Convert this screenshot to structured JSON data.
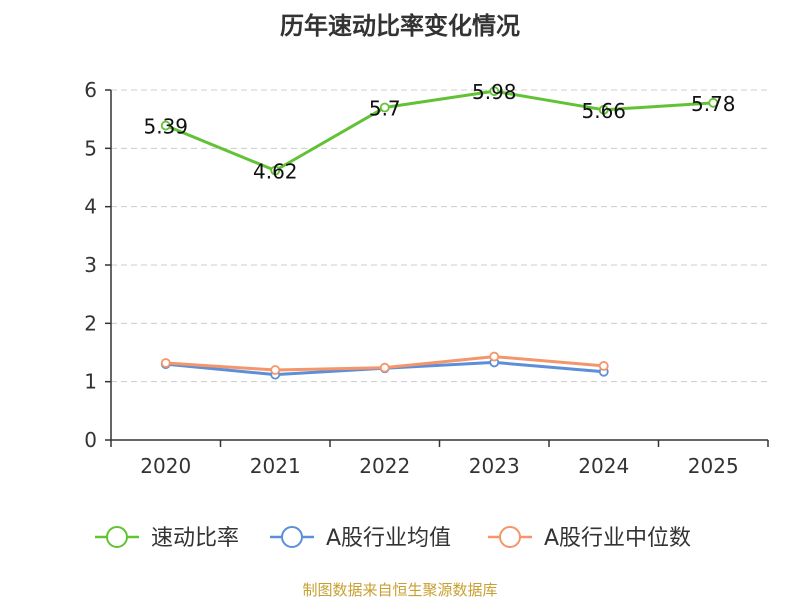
{
  "chart_data": {
    "type": "line",
    "title": "历年速动比率变化情况",
    "categories": [
      "2020",
      "2021",
      "2022",
      "2023",
      "2024",
      "2025"
    ],
    "ylim": [
      0,
      6
    ],
    "yticks": [
      "0",
      "1",
      "2",
      "3",
      "4",
      "5",
      "6"
    ],
    "grid": true,
    "legend_position": "bottom",
    "series": [
      {
        "name": "速动比率",
        "color": "#62c236",
        "values": [
          5.39,
          4.62,
          5.7,
          5.98,
          5.66,
          5.78
        ],
        "labels": [
          "5.39",
          "4.62",
          "5.7",
          "5.98",
          "5.66",
          "5.78"
        ]
      },
      {
        "name": "A股行业均值",
        "color": "#5b8fd9",
        "values": [
          1.3,
          1.12,
          1.23,
          1.33,
          1.17,
          null
        ]
      },
      {
        "name": "A股行业中位数",
        "color": "#f5956a",
        "values": [
          1.32,
          1.2,
          1.24,
          1.43,
          1.27,
          null
        ]
      }
    ]
  },
  "footer": {
    "source": "制图数据来自恒生聚源数据库"
  }
}
